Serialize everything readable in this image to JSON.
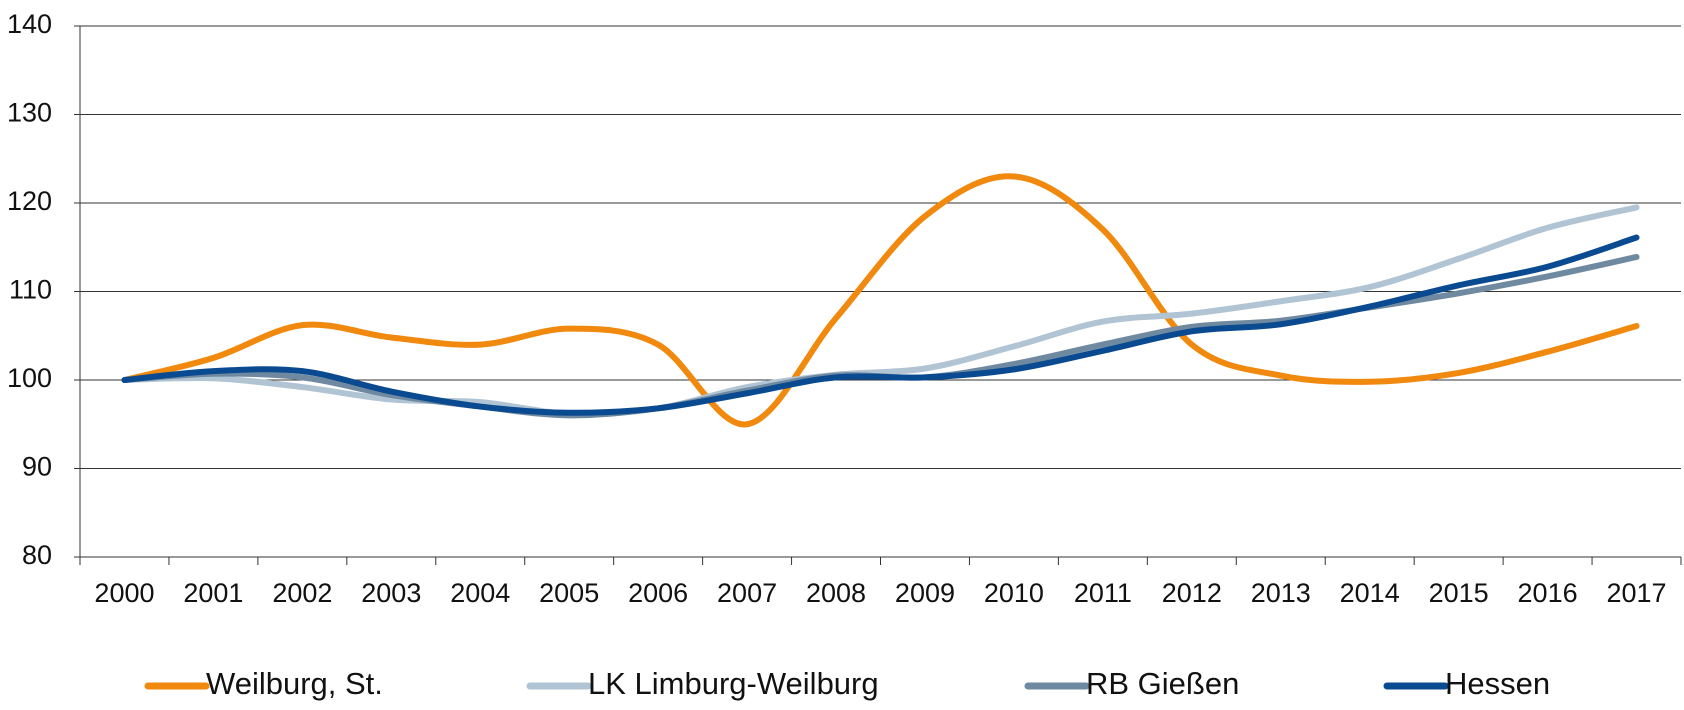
{
  "chart_data": {
    "type": "line",
    "categories": [
      "2000",
      "2001",
      "2002",
      "2003",
      "2004",
      "2005",
      "2006",
      "2007",
      "2008",
      "2009",
      "2010",
      "2011",
      "2012",
      "2013",
      "2014",
      "2015",
      "2016",
      "2017"
    ],
    "series": [
      {
        "name": "Weilburg, St.",
        "color": "#f0890e",
        "values": [
          100,
          102.5,
          106.2,
          104.8,
          104,
          105.8,
          104,
          95,
          107,
          118.5,
          123,
          117,
          104,
          100.5,
          99.8,
          100.8,
          103.2,
          106.1
        ]
      },
      {
        "name": "LK Limburg-Weilburg",
        "color": "#b0c4d4",
        "values": [
          100,
          100.2,
          99.2,
          97.8,
          97.5,
          96.2,
          96.8,
          99.2,
          100.6,
          101.3,
          103.8,
          106.6,
          107.5,
          108.9,
          110.5,
          113.7,
          117.2,
          119.5
        ]
      },
      {
        "name": "RB Gießen",
        "color": "#6f8aa0",
        "values": [
          100,
          100.7,
          100.3,
          98.3,
          97,
          96,
          96.8,
          98.8,
          100.5,
          100.3,
          101.8,
          104,
          106,
          106.7,
          108.2,
          109.8,
          111.7,
          113.9
        ]
      },
      {
        "name": "Hessen",
        "color": "#0a4a90",
        "values": [
          100,
          101,
          101,
          98.7,
          97,
          96.3,
          96.8,
          98.5,
          100.3,
          100.3,
          101.2,
          103.3,
          105.5,
          106.3,
          108.3,
          110.7,
          112.8,
          116.1
        ]
      }
    ],
    "ylim": [
      80,
      140
    ],
    "yticks": [
      80,
      90,
      100,
      110,
      120,
      130,
      140
    ],
    "grid": true
  }
}
